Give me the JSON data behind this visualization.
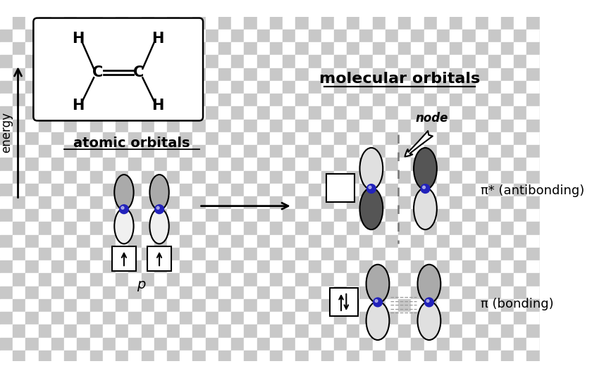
{
  "bg_checker_color1": "#ffffff",
  "bg_checker_color2": "#c8c8c8",
  "checker_size": 20,
  "title_mol_orbitals": "molecular orbitals",
  "title_atomic_orbitals": "atomic orbitals",
  "label_energy": "energy",
  "label_p": "p",
  "label_node": "node",
  "label_antibonding": "π* (antibonding)",
  "label_bonding": "π (bonding)",
  "blue_sphere_color": "#2222bb",
  "dark_lobe_color": "#555555",
  "mid_lobe_color": "#aaaaaa",
  "light_lobe_color": "#e0e0e0",
  "white_lobe_color": "#f0f0f0"
}
